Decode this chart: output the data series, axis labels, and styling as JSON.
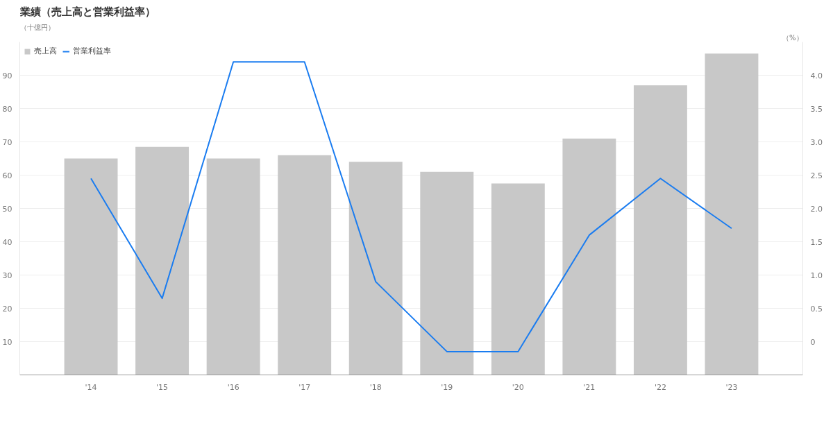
{
  "chart_data": {
    "type": "bar",
    "title": "業績（売上高と営業利益率）",
    "ylabel": "（十億円）",
    "y2label": "（%）",
    "categories": [
      "'14",
      "'15",
      "'16",
      "'17",
      "'18",
      "'19",
      "'20",
      "'21",
      "'22",
      "'23"
    ],
    "series": [
      {
        "name": "売上高",
        "color": "#c8c8c8",
        "values": [
          65,
          68.5,
          65,
          66,
          64,
          61,
          57.5,
          71,
          87,
          96.5
        ]
      },
      {
        "name": "営業利益率",
        "type": "line",
        "axis": "y2",
        "color": "#1a7cf0",
        "values": [
          2.45,
          0.65,
          4.2,
          4.2,
          0.9,
          -0.15,
          -0.15,
          1.6,
          2.45,
          1.7
        ]
      }
    ],
    "ylim": [
      0,
      100
    ],
    "yticks": [
      10,
      20,
      30,
      40,
      50,
      60,
      70,
      80,
      90
    ],
    "y2lim": [
      -0.5,
      4.5
    ],
    "y2ticks": [
      0,
      {
        "value": 0.5,
        "label": "0.5"
      },
      {
        "value": 1,
        "label": "1.0"
      },
      {
        "value": 1.5,
        "label": "1.5"
      },
      {
        "value": 2,
        "label": "2.0"
      },
      {
        "value": 2.5,
        "label": "2.5"
      },
      {
        "value": 3,
        "label": "3.0"
      },
      {
        "value": 3.5,
        "label": "3.5"
      },
      {
        "value": 4,
        "label": "4.0"
      }
    ],
    "grid": "y",
    "legend": "top left",
    "line_style": "solid",
    "marker": "none"
  }
}
